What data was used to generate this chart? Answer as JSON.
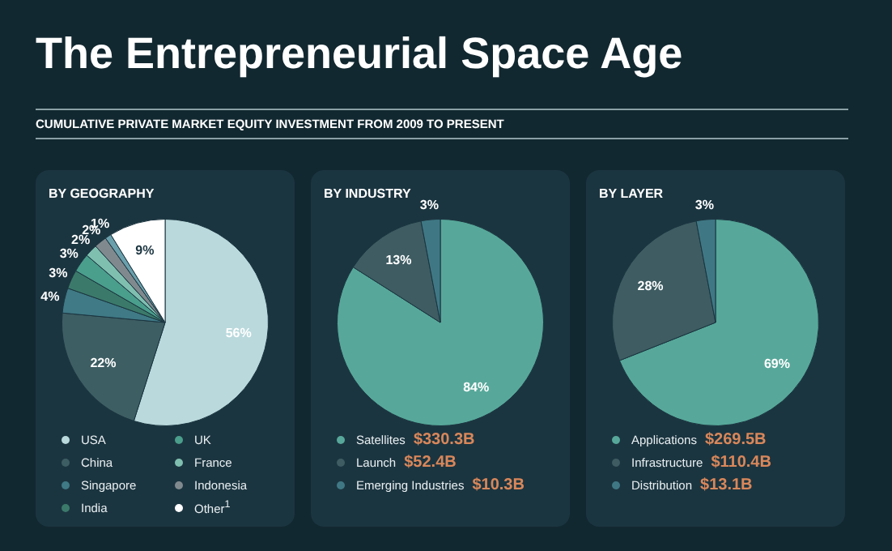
{
  "chart_data": [
    {
      "type": "other",
      "title": "The Entrepreneurial Space Age",
      "subtitle": "CUMULATIVE PRIVATE MARKET EQUITY INVESTMENT FROM 2009 TO PRESENT"
    },
    {
      "type": "pie",
      "title": "BY GEOGRAPHY",
      "categories": [
        "USA",
        "China",
        "Singapore",
        "India",
        "UK",
        "France",
        "Indonesia",
        null,
        "Other$^{1}$"
      ],
      "values": [
        56,
        22,
        4,
        3,
        3,
        2,
        2,
        1,
        9
      ],
      "value_labels": [
        "56%",
        "22%",
        "4%",
        "3%",
        "3%",
        "2%",
        "2%",
        "1%",
        "9%"
      ],
      "colors": [
        "#b9d9dc",
        "#3d5e63",
        "#3f7a86",
        "#3b7a6a",
        "#4a9e8c",
        "#7fbfb0",
        "#808a8e",
        "#6aa0ac",
        "#ffffff"
      ],
      "legend": "bottom"
    },
    {
      "type": "pie",
      "title": "BY INDUSTRY",
      "categories": [
        "Satellites",
        "Launch",
        "Emerging Industries"
      ],
      "values": [
        84,
        13,
        3
      ],
      "value_labels": [
        "84%",
        "13%",
        "3%"
      ],
      "colors": [
        "#57a89a",
        "#3e5c62",
        "#3f7884"
      ],
      "legend": "bottom",
      "annotations": [
        "$330.3B",
        "$52.4B",
        "$10.3B"
      ]
    },
    {
      "type": "pie",
      "title": "BY LAYER",
      "categories": [
        "Applications",
        "Infrastructure",
        "Distribution"
      ],
      "values": [
        69,
        28,
        3
      ],
      "value_labels": [
        "69%",
        "28%",
        "3%"
      ],
      "colors": [
        "#57a89a",
        "#3e5c62",
        "#3f7884"
      ],
      "legend": "bottom",
      "annotations": [
        "$269.5B",
        "$110.4B",
        "$13.1B"
      ]
    }
  ]
}
